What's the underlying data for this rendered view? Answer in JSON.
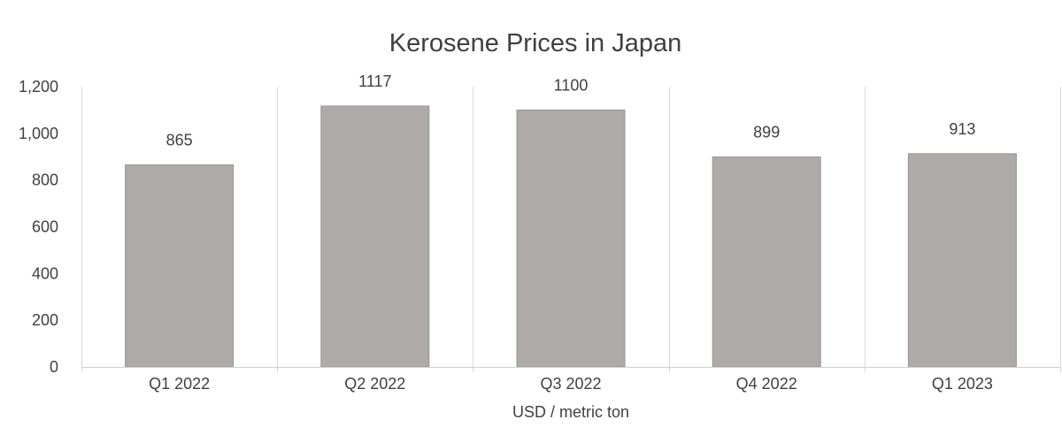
{
  "chart_data": {
    "type": "bar",
    "title": "Kerosene Prices in Japan",
    "xlabel": "USD / metric ton",
    "ylabel": "",
    "categories": [
      "Q1 2022",
      "Q2 2022",
      "Q3 2022",
      "Q4 2022",
      "Q1 2023"
    ],
    "values": [
      865,
      1117,
      1100,
      899,
      913
    ],
    "data_labels": [
      "865",
      "1117",
      "1100",
      "899",
      "913"
    ],
    "ylim": [
      0,
      1200
    ],
    "yticks": [
      0,
      200,
      400,
      600,
      800,
      1000,
      1200
    ],
    "ytick_labels": [
      "0",
      "200",
      "400",
      "600",
      "800",
      "1,000",
      "1,200"
    ],
    "grid": "vertical category separators",
    "legend": "none",
    "colors": {
      "bar_fill": "#aeaaaa",
      "bar_stroke": "#999595",
      "gridline": "#d9d9d9",
      "axis_line": "#d0d0d0",
      "text": "#404040"
    }
  }
}
